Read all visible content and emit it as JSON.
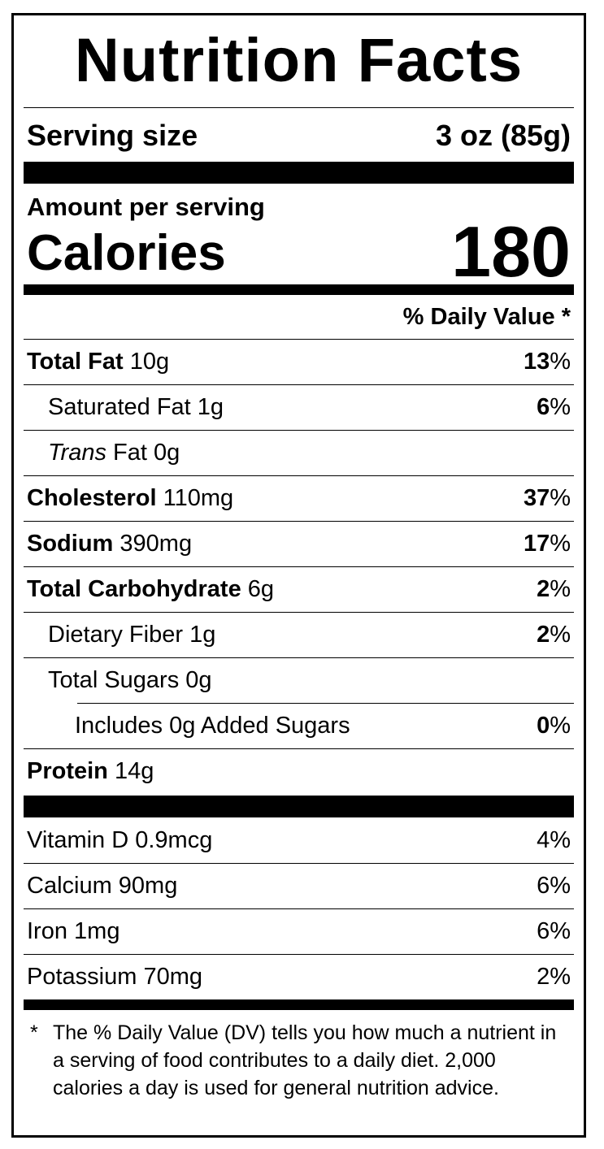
{
  "title": "Nutrition Facts",
  "serving": {
    "label": "Serving size",
    "value": "3 oz (85g)"
  },
  "amount_per_serving": "Amount per serving",
  "calories": {
    "label": "Calories",
    "value": "180"
  },
  "dv_header": "% Daily Value *",
  "nutrients": [
    {
      "name": "Total Fat",
      "amount": "10g",
      "dv_num": "13",
      "dv_pct": "%"
    },
    {
      "name": "Saturated Fat",
      "amount": "1g",
      "dv_num": "6",
      "dv_pct": "%"
    },
    {
      "name_italic": "Trans",
      "name": " Fat",
      "amount": "0g"
    },
    {
      "name": "Cholesterol",
      "amount": "110mg",
      "dv_num": "37",
      "dv_pct": "%"
    },
    {
      "name": "Sodium",
      "amount": "390mg",
      "dv_num": "17",
      "dv_pct": "%"
    },
    {
      "name": "Total Carbohydrate",
      "amount": "6g",
      "dv_num": "2",
      "dv_pct": "%"
    },
    {
      "name": "Dietary Fiber",
      "amount": "1g",
      "dv_num": "2",
      "dv_pct": "%"
    },
    {
      "name": "Total Sugars",
      "amount": "0g"
    },
    {
      "name": "Includes 0g Added Sugars",
      "dv_num": "0",
      "dv_pct": "%"
    },
    {
      "name": "Protein",
      "amount": "14g"
    }
  ],
  "vitamins": [
    {
      "name": "Vitamin D 0.9mcg",
      "dv": "4%"
    },
    {
      "name": "Calcium 90mg",
      "dv": "6%"
    },
    {
      "name": "Iron 1mg",
      "dv": "6%"
    },
    {
      "name": "Potassium 70mg",
      "dv": "2%"
    }
  ],
  "footnote": {
    "star": "*",
    "text": "The % Daily Value (DV) tells you how much a nutrient in a serving of food contributes to a daily diet. 2,000 calories a day is used for general nutrition advice."
  }
}
